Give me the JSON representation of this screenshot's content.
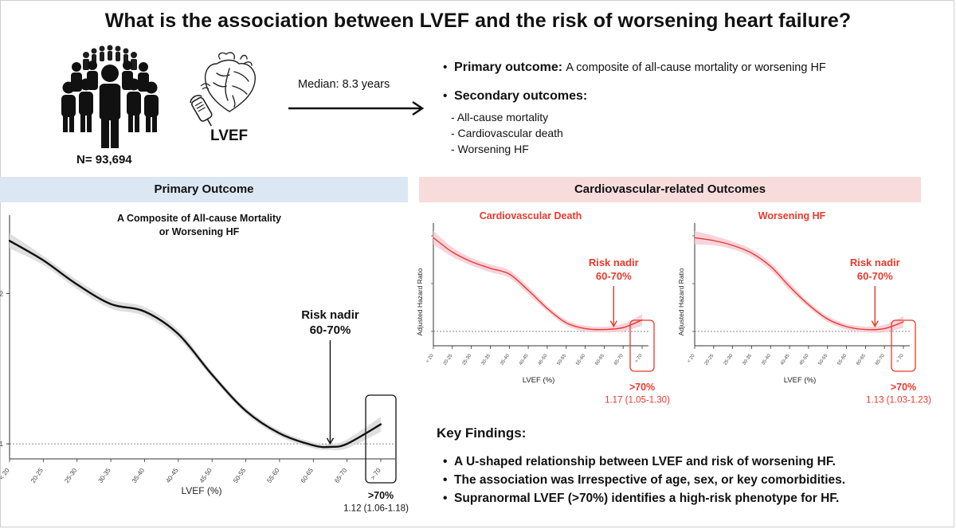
{
  "title": "What is the association between LVEF and the risk of worsening heart failure?",
  "cohort": {
    "n_label": "N= 93,694",
    "measure_label": "LVEF"
  },
  "arrow": {
    "label": "Median: 8.3 years"
  },
  "outcomes": {
    "primary_label": "Primary outcome:",
    "primary_text": "A composite of all-cause mortality or worsening HF",
    "secondary_label": "Secondary outcomes:",
    "secondary_items": [
      "- All-cause mortality",
      "- Cardiovascular death",
      "- Worsening HF"
    ]
  },
  "banners": {
    "primary": "Primary Outcome",
    "cv": "Cardiovascular-related Outcomes"
  },
  "key_findings": {
    "title": "Key Findings:",
    "items": [
      "A U-shaped relationship between LVEF and risk of worsening HF.",
      "The association was Irrespective of age, sex, or key comorbidities.",
      "Supranormal LVEF (>70%) identifies a high-risk phenotype for HF."
    ]
  },
  "colors": {
    "black_line": "#111111",
    "red_line": "#e8392b",
    "band_gray": "#d9d9d9",
    "band_red": "#f6cbd6",
    "red_text": "#e8392b"
  },
  "chart_data": [
    {
      "type": "line",
      "title": "A Composite of All-cause Mortality or Worsening HF",
      "xlabel": "LVEF (%)",
      "ylabel": "",
      "categories": [
        "< 20",
        "20-25",
        "25-30",
        "30-35",
        "35-40",
        "40-45",
        "45-50",
        "50-55",
        "55-60",
        "60-65",
        "65-70",
        "> 70"
      ],
      "ytick_labels": [
        "1",
        "2"
      ],
      "ylim": [
        0.9,
        2.5
      ],
      "series": [
        {
          "name": "Adjusted hazard ratio",
          "x": [
            0,
            1,
            2,
            3,
            4,
            5,
            6,
            7,
            8,
            9,
            9.5,
            10,
            11
          ],
          "values": [
            2.35,
            2.22,
            2.06,
            1.93,
            1.88,
            1.73,
            1.46,
            1.22,
            1.07,
            0.99,
            0.98,
            1.0,
            1.13
          ]
        }
      ],
      "band_halfwidth": [
        0.05,
        0.03,
        0.03,
        0.03,
        0.03,
        0.03,
        0.02,
        0.02,
        0.02,
        0.02,
        0.02,
        0.03,
        0.05
      ],
      "reference_line": 1,
      "annotation": {
        "line1": "Risk nadir",
        "line2": "60-70%"
      },
      "highlight": {
        "label": ">70%",
        "value": "1.12 (1.06-1.18)"
      }
    },
    {
      "type": "line",
      "title": "Cardiovascular Death",
      "xlabel": "LVEF (%)",
      "ylabel": "Adjusted Hazard Ratio",
      "categories": [
        "< 20",
        "20-25",
        "25-30",
        "30-35",
        "35-40",
        "40-45",
        "45-50",
        "50-55",
        "55-60",
        "60-65",
        "65-70",
        "> 70"
      ],
      "ylim": [
        0.85,
        2.1
      ],
      "series": [
        {
          "name": "Adjusted hazard ratio",
          "x": [
            0,
            1,
            2,
            3,
            4,
            5,
            6,
            7,
            8,
            9,
            10,
            11
          ],
          "values": [
            1.98,
            1.83,
            1.73,
            1.66,
            1.6,
            1.43,
            1.24,
            1.09,
            1.03,
            1.02,
            1.04,
            1.12
          ]
        }
      ],
      "band_halfwidth": [
        0.07,
        0.05,
        0.04,
        0.04,
        0.04,
        0.04,
        0.03,
        0.03,
        0.03,
        0.03,
        0.04,
        0.06
      ],
      "reference_line": 1,
      "annotation": {
        "line1": "Risk nadir",
        "line2": "60-70%"
      },
      "highlight": {
        "label": ">70%",
        "value": "1.17 (1.05-1.30)"
      }
    },
    {
      "type": "line",
      "title": "Worsening HF",
      "xlabel": "LVEF (%)",
      "ylabel": "Adjusted Hazard Ratio",
      "categories": [
        "< 20",
        "20-25",
        "25-30",
        "30-35",
        "35-40",
        "40-45",
        "45-50",
        "50-55",
        "55-60",
        "60-65",
        "65-70",
        "> 70"
      ],
      "ylim": [
        0.85,
        2.1
      ],
      "series": [
        {
          "name": "Adjusted hazard ratio",
          "x": [
            0,
            1,
            2,
            3,
            4,
            5,
            6,
            7,
            8,
            9,
            10,
            11
          ],
          "values": [
            1.98,
            1.95,
            1.9,
            1.82,
            1.68,
            1.47,
            1.28,
            1.13,
            1.05,
            1.02,
            1.03,
            1.1
          ]
        }
      ],
      "band_halfwidth": [
        0.07,
        0.05,
        0.04,
        0.04,
        0.04,
        0.04,
        0.03,
        0.03,
        0.03,
        0.03,
        0.04,
        0.06
      ],
      "reference_line": 1,
      "annotation": {
        "line1": "Risk nadir",
        "line2": "60-70%"
      },
      "highlight": {
        "label": ">70%",
        "value": "1.13 (1.03-1.23)"
      }
    }
  ]
}
